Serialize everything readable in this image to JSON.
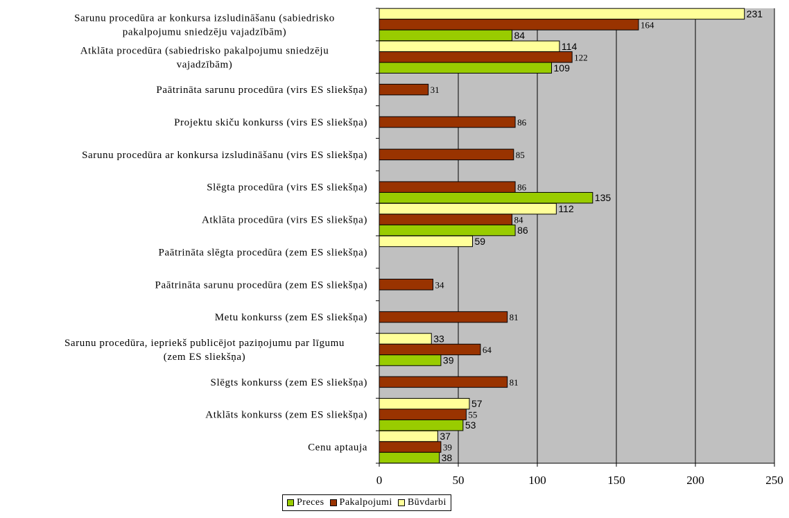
{
  "chart_data": {
    "type": "bar",
    "orientation": "horizontal",
    "categories": [
      "Sarunu procedūra ar konkursa izsludināšanu (sabiedrisko pakalpojumu sniedzēju vajadzībām)",
      "Atklāta procedūra (sabiedrisko pakalpojumu sniedzēju vajadzībām)",
      "Paātrināta sarunu procedūra (virs ES sliekšņa)",
      "Projektu skiču konkurss (virs ES sliekšņa)",
      "Sarunu procedūra ar konkursa izsludināšanu (virs ES sliekšņa)",
      "Slēgta procedūra (virs ES sliekšņa)",
      "Atklāta procedūra (virs ES sliekšņa)",
      "Paātrināta slēgta procedūra (zem ES sliekšņa)",
      "Paātrināta sarunu procedūra (zem ES sliekšņa)",
      "Metu konkurss (zem ES sliekšņa)",
      "Sarunu procedūra, iepriekš publicējot paziņojumu par līgumu (zem ES sliekšņa)",
      "Slēgts konkurss (zem ES sliekšņa)",
      "Atklāts konkurss (zem ES sliekšņa)",
      "Cenu aptauja"
    ],
    "category_lines": [
      [
        "Sarunu procedūra ar konkursa izsludināšanu (sabiedrisko",
        "pakalpojumu sniedzēju vajadzībām)"
      ],
      [
        "Atklāta procedūra (sabiedrisko pakalpojumu sniedzēju",
        "vajadzībām)"
      ],
      [
        "Paātrināta sarunu procedūra (virs ES sliekšņa)"
      ],
      [
        "Projektu skiču konkurss (virs ES sliekšņa)"
      ],
      [
        "Sarunu procedūra ar konkursa izsludināšanu (virs ES sliekšņa)"
      ],
      [
        "Slēgta procedūra (virs ES sliekšņa)"
      ],
      [
        "Atklāta procedūra (virs ES sliekšņa)"
      ],
      [
        "Paātrināta slēgta procedūra (zem ES sliekšņa)"
      ],
      [
        "Paātrināta sarunu procedūra (zem ES sliekšņa)"
      ],
      [
        "Metu konkurss (zem ES sliekšņa)"
      ],
      [
        "Sarunu procedūra, iepriekš publicējot paziņojumu par līgumu",
        "(zem ES sliekšņa)"
      ],
      [
        "Slēgts konkurss (zem ES sliekšņa)"
      ],
      [
        "Atklāts konkurss (zem ES sliekšņa)"
      ],
      [
        "Cenu aptauja"
      ]
    ],
    "series": [
      {
        "name": "Būvdarbi",
        "color": "#ffff99",
        "label_style": "sans",
        "values": [
          231,
          114,
          null,
          null,
          null,
          null,
          112,
          59,
          null,
          null,
          33,
          null,
          57,
          37
        ]
      },
      {
        "name": "Pakalpojumi",
        "color": "#993300",
        "label_style": "serif",
        "values": [
          164,
          122,
          31,
          86,
          85,
          86,
          84,
          null,
          34,
          81,
          64,
          81,
          55,
          39
        ]
      },
      {
        "name": "Preces",
        "color": "#99cc00",
        "label_style": "sans",
        "values": [
          84,
          109,
          null,
          null,
          null,
          135,
          86,
          null,
          null,
          null,
          39,
          null,
          53,
          38
        ]
      }
    ],
    "legend_order": [
      "Preces",
      "Pakalpojumi",
      "Būvdarbi"
    ],
    "xlim": [
      0,
      250
    ],
    "x_ticks": [
      0,
      50,
      100,
      150,
      200,
      250
    ],
    "xlabel": "",
    "ylabel": "",
    "title": "",
    "grid": true,
    "plot_background": "#c0c0c0",
    "legend_position": "bottom"
  }
}
